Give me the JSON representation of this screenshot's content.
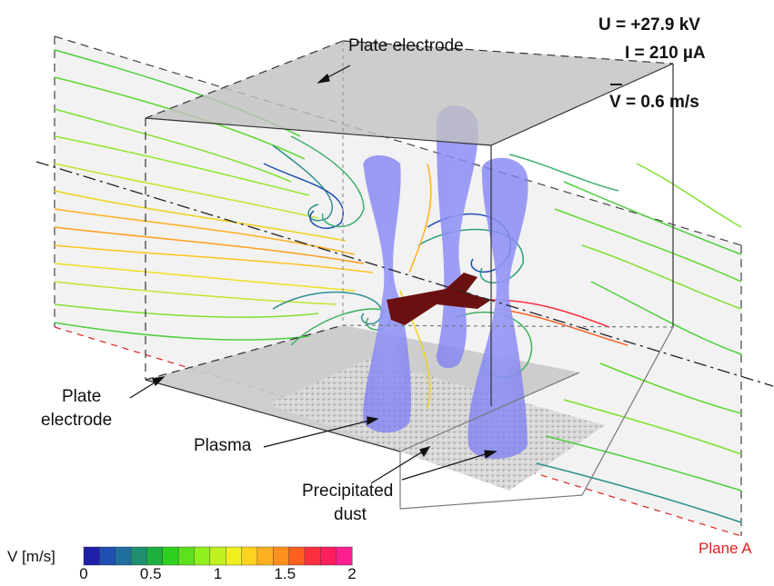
{
  "labels": {
    "plate_top": "Plate electrode",
    "plate_bottom_line1": "Plate",
    "plate_bottom_line2": "electrode",
    "plasma": "Plasma",
    "dust_line1": "Precipitated",
    "dust_line2": "dust",
    "plane_a": "Plane A"
  },
  "parameters": {
    "voltage": "U = +27.9 kV",
    "current": "I = 210 µA",
    "velocity": "V = 0.6 m/s"
  },
  "colorbar": {
    "label": "V [m/s]",
    "ticks": [
      "0",
      "0.5",
      "1",
      "1.5",
      "2"
    ],
    "range": [
      0,
      2
    ],
    "colors": [
      "#1f1fa8",
      "#1f4fb0",
      "#1f6f9f",
      "#1f8f6f",
      "#1faf3f",
      "#2fcf1f",
      "#5fe01f",
      "#8fef1f",
      "#bff21f",
      "#efef1f",
      "#ffd21f",
      "#ffb01f",
      "#ff8f1f",
      "#ff5f1f",
      "#ff2f3f",
      "#ff1f5f",
      "#ff1f8f"
    ]
  },
  "colors": {
    "plane_a_line": "#e02020",
    "plasma": "#7b7df2",
    "discharge_wire": "#6b1010",
    "plate": "#c9c9c9"
  }
}
